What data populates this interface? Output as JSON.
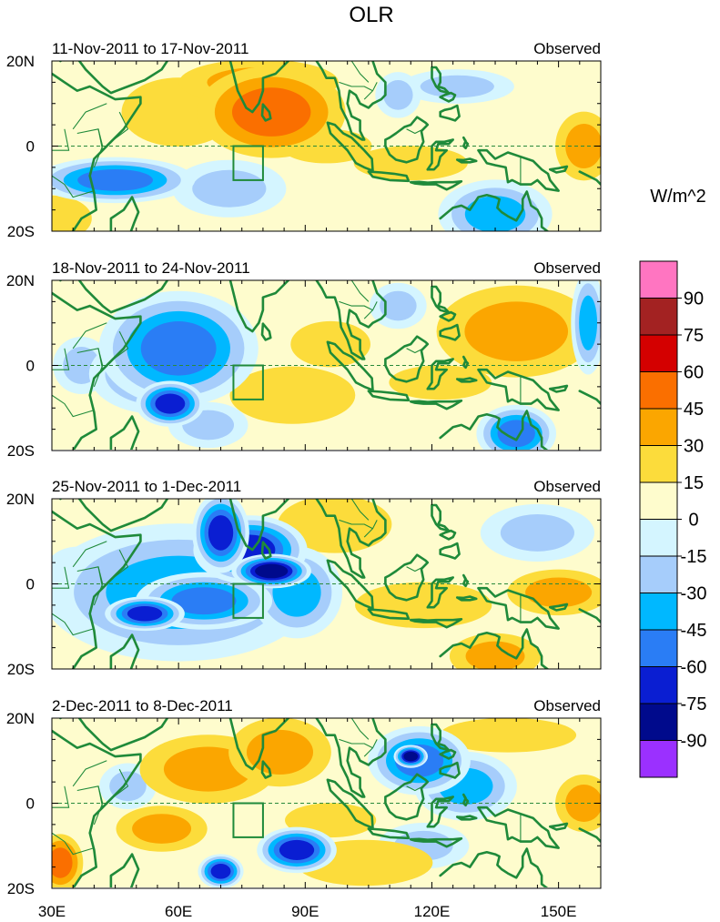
{
  "figure": {
    "title": "OLR",
    "units_label": "W/m^2",
    "status_label": "Observed"
  },
  "colors": {
    "levels": [
      {
        "label": "-90",
        "color": "#9b30ff"
      },
      {
        "label": "-75",
        "color": "#000a8c"
      },
      {
        "label": "-60",
        "color": "#0a1ed2"
      },
      {
        "label": "-45",
        "color": "#2a7df5"
      },
      {
        "label": "-30",
        "color": "#00b8ff"
      },
      {
        "label": "-15",
        "color": "#a6cdfb"
      },
      {
        "label": "0",
        "color": "#d4f5ff"
      },
      {
        "label": "15",
        "color": "#fefccd"
      },
      {
        "label": "30",
        "color": "#fcdc3b"
      },
      {
        "label": "45",
        "color": "#fba600"
      },
      {
        "label": "60",
        "color": "#fa6f00"
      },
      {
        "label": "75",
        "color": "#d40000"
      },
      {
        "label": "90",
        "color": "#a32222"
      },
      {
        "label": "",
        "color": "#ff75c1"
      }
    ],
    "coast": "#1f8a3a"
  },
  "chart_data": {
    "type": "heatmap",
    "title": "OLR",
    "variable": "OLR anomaly",
    "units": "W/m^2",
    "xlim": [
      30,
      160
    ],
    "ylim": [
      -20,
      20
    ],
    "x_ticks": [
      {
        "value": 30,
        "label": "30E"
      },
      {
        "value": 60,
        "label": "60E"
      },
      {
        "value": 90,
        "label": "90E"
      },
      {
        "value": 120,
        "label": "120E"
      },
      {
        "value": 150,
        "label": "150E"
      }
    ],
    "y_ticks": [
      {
        "value": 20,
        "label": "20N"
      },
      {
        "value": 0,
        "label": "0"
      },
      {
        "value": -20,
        "label": "20S"
      }
    ],
    "contour_levels": [
      -90,
      -75,
      -60,
      -45,
      -30,
      -15,
      0,
      15,
      30,
      45,
      60,
      75,
      90
    ],
    "analysis_box": {
      "lon": [
        73,
        80
      ],
      "lat": [
        -8,
        0
      ]
    },
    "panels": [
      {
        "period": "11-Nov-2011 to 17-Nov-2011",
        "label": "Observed",
        "features": [
          {
            "lon": 45,
            "lat": -8,
            "value": -55,
            "rlon": 14,
            "rlat": 4
          },
          {
            "lon": 72,
            "lat": -10,
            "value": -20,
            "rlon": 10,
            "rlat": 5
          },
          {
            "lon": 112,
            "lat": 12,
            "value": -25,
            "rlon": 4,
            "rlat": 4
          },
          {
            "lon": 126,
            "lat": 14,
            "value": -20,
            "rlon": 10,
            "rlat": 3
          },
          {
            "lon": 135,
            "lat": -16,
            "value": -40,
            "rlon": 10,
            "rlat": 6
          },
          {
            "lon": 82,
            "lat": 8,
            "value": 45,
            "rlon": 13,
            "rlat": 8
          },
          {
            "lon": 79,
            "lat": 15,
            "value": 30,
            "rlon": 14,
            "rlat": 4
          },
          {
            "lon": 95,
            "lat": 0,
            "value": 28,
            "rlon": 8,
            "rlat": 3
          },
          {
            "lon": 115,
            "lat": -4,
            "value": 28,
            "rlon": 10,
            "rlat": 3
          },
          {
            "lon": 156,
            "lat": 0,
            "value": 35,
            "rlon": 5,
            "rlat": 6
          },
          {
            "lon": 30,
            "lat": -17,
            "value": 25,
            "rlon": 7,
            "rlat": 4
          },
          {
            "lon": 60,
            "lat": 8,
            "value": 15,
            "rlon": 10,
            "rlat": 6
          }
        ]
      },
      {
        "period": "18-Nov-2011 to 24-Nov-2011",
        "label": "Observed",
        "features": [
          {
            "lon": 60,
            "lat": 4,
            "value": -45,
            "rlon": 14,
            "rlat": 10
          },
          {
            "lon": 58,
            "lat": -9,
            "value": -62,
            "rlon": 6,
            "rlat": 4
          },
          {
            "lon": 55,
            "lat": -2,
            "value": -35,
            "rlon": 12,
            "rlat": 7
          },
          {
            "lon": 67,
            "lat": -14,
            "value": -25,
            "rlon": 7,
            "rlat": 4
          },
          {
            "lon": 37,
            "lat": 0,
            "value": -20,
            "rlon": 5,
            "rlat": 5
          },
          {
            "lon": 140,
            "lat": -16,
            "value": -45,
            "rlon": 7,
            "rlat": 5
          },
          {
            "lon": 157,
            "lat": 10,
            "value": -35,
            "rlon": 3,
            "rlat": 9
          },
          {
            "lon": 87,
            "lat": -7,
            "value": 28,
            "rlon": 11,
            "rlat": 5
          },
          {
            "lon": 96,
            "lat": 5,
            "value": 22,
            "rlon": 7,
            "rlat": 4
          },
          {
            "lon": 140,
            "lat": 8,
            "value": 30,
            "rlon": 14,
            "rlat": 8
          },
          {
            "lon": 122,
            "lat": -4,
            "value": 20,
            "rlon": 9,
            "rlat": 3
          },
          {
            "lon": 112,
            "lat": 14,
            "value": -20,
            "rlon": 5,
            "rlat": 4
          }
        ]
      },
      {
        "period": "25-Nov-2011 to 1-Dec-2011",
        "label": "Observed",
        "features": [
          {
            "lon": 70,
            "lat": 12,
            "value": -62,
            "rlon": 5,
            "rlat": 7
          },
          {
            "lon": 82,
            "lat": 3,
            "value": -75,
            "rlon": 7,
            "rlat": 3
          },
          {
            "lon": 77,
            "lat": 8,
            "value": -60,
            "rlon": 10,
            "rlat": 6
          },
          {
            "lon": 66,
            "lat": -4,
            "value": -45,
            "rlon": 12,
            "rlat": 5
          },
          {
            "lon": 52,
            "lat": -7,
            "value": -62,
            "rlon": 7,
            "rlat": 3
          },
          {
            "lon": 88,
            "lat": -2,
            "value": -35,
            "rlon": 8,
            "rlat": 8
          },
          {
            "lon": 60,
            "lat": -2,
            "value": -30,
            "rlon": 24,
            "rlat": 12
          },
          {
            "lon": 36,
            "lat": 2,
            "value": -20,
            "rlon": 6,
            "rlat": 5
          },
          {
            "lon": 97,
            "lat": 14,
            "value": 25,
            "rlon": 10,
            "rlat": 5
          },
          {
            "lon": 118,
            "lat": -5,
            "value": 22,
            "rlon": 12,
            "rlat": 4
          },
          {
            "lon": 150,
            "lat": -2,
            "value": 30,
            "rlon": 9,
            "rlat": 4
          },
          {
            "lon": 135,
            "lat": -17,
            "value": 35,
            "rlon": 8,
            "rlat": 4
          },
          {
            "lon": 145,
            "lat": 12,
            "value": -20,
            "rlon": 10,
            "rlat": 5
          }
        ]
      },
      {
        "period": "2-Dec-2011 to 8-Dec-2011",
        "label": "Observed",
        "features": [
          {
            "lon": 84,
            "lat": 12,
            "value": 40,
            "rlon": 9,
            "rlat": 6
          },
          {
            "lon": 67,
            "lat": 8,
            "value": 30,
            "rlon": 12,
            "rlat": 6
          },
          {
            "lon": 56,
            "lat": -6,
            "value": 30,
            "rlon": 8,
            "rlat": 4
          },
          {
            "lon": 96,
            "lat": -4,
            "value": 25,
            "rlon": 8,
            "rlat": 3
          },
          {
            "lon": 104,
            "lat": -14,
            "value": 25,
            "rlon": 12,
            "rlat": 4
          },
          {
            "lon": 32,
            "lat": -14,
            "value": 55,
            "rlon": 4,
            "rlat": 5
          },
          {
            "lon": 156,
            "lat": 0,
            "value": 40,
            "rlon": 5,
            "rlat": 5
          },
          {
            "lon": 138,
            "lat": 16,
            "value": 22,
            "rlon": 12,
            "rlat": 3
          },
          {
            "lon": 117,
            "lat": 10,
            "value": -50,
            "rlon": 9,
            "rlat": 6
          },
          {
            "lon": 115,
            "lat": 11,
            "value": -75,
            "rlon": 3,
            "rlat": 2
          },
          {
            "lon": 88,
            "lat": -11,
            "value": -60,
            "rlon": 7,
            "rlat": 4
          },
          {
            "lon": 70,
            "lat": -16,
            "value": -70,
            "rlon": 4,
            "rlat": 3
          },
          {
            "lon": 128,
            "lat": 4,
            "value": -30,
            "rlon": 9,
            "rlat": 6
          },
          {
            "lon": 48,
            "lat": 4,
            "value": -20,
            "rlon": 5,
            "rlat": 4
          },
          {
            "lon": 118,
            "lat": -10,
            "value": -20,
            "rlon": 8,
            "rlat": 4
          }
        ]
      }
    ]
  }
}
